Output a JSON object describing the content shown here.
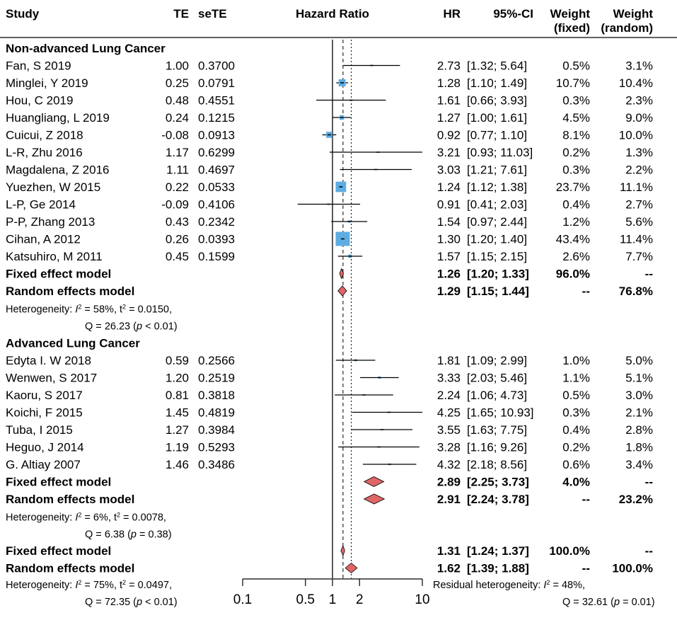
{
  "chart_data": {
    "type": "forest",
    "scale": "log",
    "measure": "Hazard Ratio",
    "xlim": [
      0.1,
      10
    ],
    "ticks": [
      {
        "value": 0.1,
        "label": "0.1"
      },
      {
        "value": 0.5,
        "label": "0.5"
      },
      {
        "value": 1,
        "label": "1"
      },
      {
        "value": 2,
        "label": "2"
      },
      {
        "value": 10,
        "label": "10"
      }
    ],
    "columns": {
      "study": "Study",
      "te": "TE",
      "sete": "seTE",
      "plot": "Hazard Ratio",
      "hr": "HR",
      "ci": "95%-CI",
      "wfixed": [
        "Weight",
        "(fixed)"
      ],
      "wrandom": [
        "Weight",
        "(random)"
      ]
    },
    "colors": {
      "square": "#5dade2",
      "diamond": "#e06666",
      "line": "#000000"
    },
    "subgroups": [
      {
        "title": "Non-advanced Lung Cancer",
        "studies": [
          {
            "study": "Fan, S 2019",
            "te": "1.00",
            "sete": "0.3700",
            "hr": 2.73,
            "lo": 1.32,
            "hi": 5.64,
            "hr_text": "2.73",
            "ci_text": "[1.32;  5.64]",
            "wf": "0.5%",
            "wr": "3.1%",
            "wfnum": 0.5
          },
          {
            "study": "Minglei, Y 2019",
            "te": "0.25",
            "sete": "0.0791",
            "hr": 1.28,
            "lo": 1.1,
            "hi": 1.49,
            "hr_text": "1.28",
            "ci_text": "[1.10;  1.49]",
            "wf": "10.7%",
            "wr": "10.4%",
            "wfnum": 10.7
          },
          {
            "study": "Hou, C 2019",
            "te": "0.48",
            "sete": "0.4551",
            "hr": 1.61,
            "lo": 0.66,
            "hi": 3.93,
            "hr_text": "1.61",
            "ci_text": "[0.66;  3.93]",
            "wf": "0.3%",
            "wr": "2.3%",
            "wfnum": 0.3
          },
          {
            "study": "Huangliang, L 2019",
            "te": "0.24",
            "sete": "0.1215",
            "hr": 1.27,
            "lo": 1.0,
            "hi": 1.61,
            "hr_text": "1.27",
            "ci_text": "[1.00;  1.61]",
            "wf": "4.5%",
            "wr": "9.0%",
            "wfnum": 4.5
          },
          {
            "study": "Cuicui, Z 2018",
            "te": "-0.08",
            "sete": "0.0913",
            "hr": 0.92,
            "lo": 0.77,
            "hi": 1.1,
            "hr_text": "0.92",
            "ci_text": "[0.77;  1.10]",
            "wf": "8.1%",
            "wr": "10.0%",
            "wfnum": 8.1
          },
          {
            "study": "L-R, Zhu 2016",
            "te": "1.17",
            "sete": "0.6299",
            "hr": 3.21,
            "lo": 0.93,
            "hi": 11.03,
            "hr_text": "3.21",
            "ci_text": "[0.93; 11.03]",
            "wf": "0.2%",
            "wr": "1.3%",
            "wfnum": 0.2
          },
          {
            "study": "Magdalena, Z 2016",
            "te": "1.11",
            "sete": "0.4697",
            "hr": 3.03,
            "lo": 1.21,
            "hi": 7.61,
            "hr_text": "3.03",
            "ci_text": "[1.21;  7.61]",
            "wf": "0.3%",
            "wr": "2.2%",
            "wfnum": 0.3
          },
          {
            "study": "Yuezhen, W 2015",
            "te": "0.22",
            "sete": "0.0533",
            "hr": 1.24,
            "lo": 1.12,
            "hi": 1.38,
            "hr_text": "1.24",
            "ci_text": "[1.12;  1.38]",
            "wf": "23.7%",
            "wr": "11.1%",
            "wfnum": 23.7
          },
          {
            "study": "L-P, Ge 2014",
            "te": "-0.09",
            "sete": "0.4106",
            "hr": 0.91,
            "lo": 0.41,
            "hi": 2.03,
            "hr_text": "0.91",
            "ci_text": "[0.41;  2.03]",
            "wf": "0.4%",
            "wr": "2.7%",
            "wfnum": 0.4
          },
          {
            "study": "P-P, Zhang 2013",
            "te": "0.43",
            "sete": "0.2342",
            "hr": 1.54,
            "lo": 0.97,
            "hi": 2.44,
            "hr_text": "1.54",
            "ci_text": "[0.97;  2.44]",
            "wf": "1.2%",
            "wr": "5.6%",
            "wfnum": 1.2
          },
          {
            "study": "Cihan, A 2012",
            "te": "0.26",
            "sete": "0.0393",
            "hr": 1.3,
            "lo": 1.2,
            "hi": 1.4,
            "hr_text": "1.30",
            "ci_text": "[1.20;  1.40]",
            "wf": "43.4%",
            "wr": "11.4%",
            "wfnum": 43.4
          },
          {
            "study": "Katsuhiro, M 2011",
            "te": "0.45",
            "sete": "0.1599",
            "hr": 1.57,
            "lo": 1.15,
            "hi": 2.15,
            "hr_text": "1.57",
            "ci_text": "[1.15;  2.15]",
            "wf": "2.6%",
            "wr": "7.7%",
            "wfnum": 2.6
          }
        ],
        "fixed": {
          "label": "Fixed effect model",
          "hr": 1.26,
          "lo": 1.2,
          "hi": 1.33,
          "hr_text": "1.26",
          "ci_text": "[1.20;  1.33]",
          "wf": "96.0%",
          "wr": "--"
        },
        "random": {
          "label": "Random effects model",
          "hr": 1.29,
          "lo": 1.15,
          "hi": 1.44,
          "hr_text": "1.29",
          "ci_text": "[1.15;  1.44]",
          "wf": "--",
          "wr": "76.8%"
        },
        "heterogeneity": {
          "prefix": "Heterogeneity: ",
          "i2": "58%",
          "tau2": "0.0150",
          "q": "26.23",
          "p": "< 0.01"
        }
      },
      {
        "title": "Advanced Lung Cancer",
        "studies": [
          {
            "study": "Edyta I. W 2018",
            "te": "0.59",
            "sete": "0.2566",
            "hr": 1.81,
            "lo": 1.09,
            "hi": 2.99,
            "hr_text": "1.81",
            "ci_text": "[1.09;  2.99]",
            "wf": "1.0%",
            "wr": "5.0%",
            "wfnum": 1.0
          },
          {
            "study": "Wenwen, S 2017",
            "te": "1.20",
            "sete": "0.2519",
            "hr": 3.33,
            "lo": 2.03,
            "hi": 5.46,
            "hr_text": "3.33",
            "ci_text": "[2.03;  5.46]",
            "wf": "1.1%",
            "wr": "5.1%",
            "wfnum": 1.1
          },
          {
            "study": "Kaoru, S 2017",
            "te": "0.81",
            "sete": "0.3818",
            "hr": 2.24,
            "lo": 1.06,
            "hi": 4.73,
            "hr_text": "2.24",
            "ci_text": "[1.06;  4.73]",
            "wf": "0.5%",
            "wr": "3.0%",
            "wfnum": 0.5
          },
          {
            "study": "Koichi, F 2015",
            "te": "1.45",
            "sete": "0.4819",
            "hr": 4.25,
            "lo": 1.65,
            "hi": 10.93,
            "hr_text": "4.25",
            "ci_text": "[1.65; 10.93]",
            "wf": "0.3%",
            "wr": "2.1%",
            "wfnum": 0.3
          },
          {
            "study": "Tuba, I 2015",
            "te": "1.27",
            "sete": "0.3984",
            "hr": 3.55,
            "lo": 1.63,
            "hi": 7.75,
            "hr_text": "3.55",
            "ci_text": "[1.63;  7.75]",
            "wf": "0.4%",
            "wr": "2.8%",
            "wfnum": 0.4
          },
          {
            "study": "Heguo, J 2014",
            "te": "1.19",
            "sete": "0.5293",
            "hr": 3.28,
            "lo": 1.16,
            "hi": 9.26,
            "hr_text": "3.28",
            "ci_text": "[1.16;  9.26]",
            "wf": "0.2%",
            "wr": "1.8%",
            "wfnum": 0.2
          },
          {
            "study": "G. Altiay 2007",
            "te": "1.46",
            "sete": "0.3486",
            "hr": 4.32,
            "lo": 2.18,
            "hi": 8.56,
            "hr_text": "4.32",
            "ci_text": "[2.18;  8.56]",
            "wf": "0.6%",
            "wr": "3.4%",
            "wfnum": 0.6
          }
        ],
        "fixed": {
          "label": "Fixed effect model",
          "hr": 2.89,
          "lo": 2.25,
          "hi": 3.73,
          "hr_text": "2.89",
          "ci_text": "[2.25;  3.73]",
          "wf": "4.0%",
          "wr": "--"
        },
        "random": {
          "label": "Random effects model",
          "hr": 2.91,
          "lo": 2.24,
          "hi": 3.78,
          "hr_text": "2.91",
          "ci_text": "[2.24;  3.78]",
          "wf": "--",
          "wr": "23.2%"
        },
        "heterogeneity": {
          "prefix": "Heterogeneity: ",
          "i2": "6%",
          "tau2": "0.0078",
          "q": "6.38",
          "p": "= 0.38"
        }
      }
    ],
    "overall": {
      "fixed": {
        "label": "Fixed effect model",
        "hr": 1.31,
        "lo": 1.24,
        "hi": 1.37,
        "hr_text": "1.31",
        "ci_text": "[1.24;  1.37]",
        "wf": "100.0%",
        "wr": "--"
      },
      "random": {
        "label": "Random effects model",
        "hr": 1.62,
        "lo": 1.39,
        "hi": 1.88,
        "hr_text": "1.62",
        "ci_text": "[1.39;  1.88]",
        "wf": "--",
        "wr": "100.0%"
      },
      "heterogeneity": {
        "prefix": "Heterogeneity: ",
        "i2": "75%",
        "tau2": "0.0497",
        "q": "72.35",
        "p": "< 0.01"
      },
      "residual": {
        "prefix": "Residual heterogeneity: ",
        "i2": "48%",
        "q": "32.61",
        "p": "= 0.01"
      }
    }
  }
}
